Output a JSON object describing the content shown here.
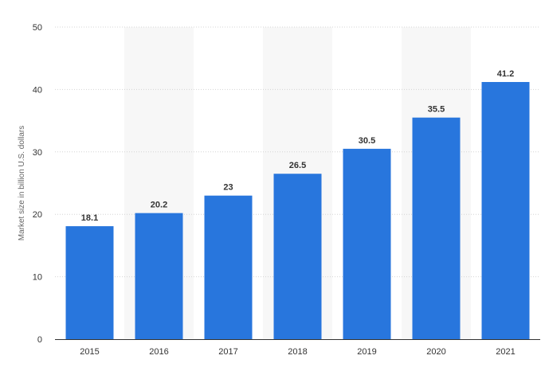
{
  "chart_data": {
    "type": "bar",
    "categories": [
      "2015",
      "2016",
      "2017",
      "2018",
      "2019",
      "2020",
      "2021"
    ],
    "values": [
      18.1,
      20.2,
      23,
      26.5,
      30.5,
      35.5,
      41.2
    ],
    "data_labels": [
      "18.1",
      "20.2",
      "23",
      "26.5",
      "30.5",
      "35.5",
      "41.2"
    ],
    "title": "",
    "xlabel": "",
    "ylabel": "Market size in billion U.S. dollars",
    "ylim": [
      0,
      50
    ],
    "yticks": [
      0,
      10,
      20,
      30,
      40,
      50
    ],
    "ytick_labels": [
      "0",
      "10",
      "20",
      "30",
      "40",
      "50"
    ],
    "grid": true,
    "legend": "none",
    "colors": {
      "bar": "#2876dd",
      "band": "#f7f7f7",
      "grid": "#d4d4d4",
      "axis": "#333333"
    }
  }
}
